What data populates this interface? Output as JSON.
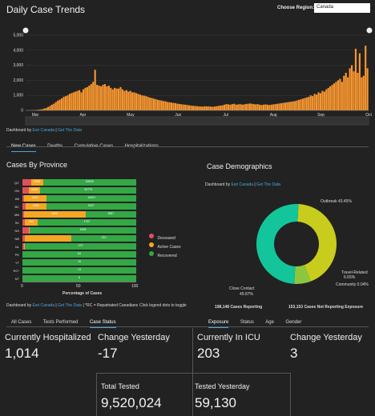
{
  "header": {
    "title": "Daily Case Trends",
    "region_label": "Choose Region:",
    "region_value": "Canada"
  },
  "trend": {
    "dashboard_by": "Dashboard by",
    "dashboard_link": "Esri Canada",
    "get_data": "Get The Data",
    "tabs": [
      "New Cases",
      "Deaths",
      "Cumulative Cases",
      "Hospitalizations"
    ],
    "active_tab": 0
  },
  "province": {
    "title": "Cases By Province",
    "xlabel": "Percentage of Cases",
    "legend": [
      "Deceased",
      "Active Cases",
      "Recovered"
    ],
    "footer_dashboard": "Dashboard by",
    "footer_link1": "Esri Canada",
    "footer_link2": "Get The Data",
    "footer_note": "*RC = Repatriated Canadians",
    "legend_hint": "Click legend dots to toggle",
    "tabs": [
      "All Cases",
      "Tests Performed",
      "Case Status"
    ],
    "active_tab": 2
  },
  "demographics": {
    "title": "Case Demographics",
    "dashboard_by": "Dashboard by",
    "dashboard_link": "Esri Canada",
    "get_data": "Get The Data",
    "labels": {
      "outbreak": "Outbreak 43.45%",
      "travel": "Travel-Related",
      "travel_pct": "6.65%",
      "community": "Community 0.04%",
      "close": "Close Contact",
      "close_pct": "49.87%"
    },
    "reporting": "198,148 Cases Reporting",
    "not_reporting": "153,153 Cases Not Reporting Exposure",
    "tabs": [
      "Exposure",
      "Status",
      "Age",
      "Gender"
    ],
    "active_tab": 0
  },
  "stats": {
    "hosp_label": "Currently Hospitalized",
    "hosp_value": "1,014",
    "hosp_change_label": "Change Yesterday",
    "hosp_change_value": "-17",
    "icu_label": "Currently In ICU",
    "icu_value": "203",
    "icu_change_label": "Change Yesterday",
    "icu_change_value": "3",
    "tested_label": "Total Tested",
    "tested_value": "9,520,024",
    "tested_y_label": "Tested Yesterday",
    "tested_y_value": "59,130"
  },
  "colors": {
    "deceased": "#e0505a",
    "active": "#f5a623",
    "recovered": "#33a845",
    "trend": "#f7962f",
    "outbreak": "#c8cc1c",
    "close": "#13c59a",
    "travel": "#8cc63f",
    "community": "#4caf50"
  },
  "chart_data": [
    {
      "type": "bar",
      "title": "Daily Case Trends",
      "x_ticks": [
        "Mar",
        "Apr",
        "May",
        "Jun",
        "Jul",
        "Aug",
        "Sep",
        "Oct"
      ],
      "y_ticks": [
        "0",
        "1,000",
        "2,000",
        "3,000",
        "4,000",
        "5,000"
      ],
      "ylim": [
        0,
        5000
      ],
      "values": [
        5,
        8,
        10,
        15,
        20,
        30,
        45,
        60,
        80,
        120,
        160,
        220,
        300,
        380,
        450,
        550,
        650,
        720,
        800,
        900,
        950,
        1000,
        1100,
        1150,
        1200,
        1250,
        1300,
        1350,
        1200,
        1400,
        1500,
        1550,
        1650,
        1750,
        1900,
        2700,
        1700,
        1650,
        1600,
        1700,
        1750,
        1600,
        1650,
        1500,
        1400,
        1500,
        1450,
        1450,
        1550,
        1400,
        1300,
        1350,
        1250,
        1300,
        1200,
        1200,
        1150,
        1100,
        1050,
        1000,
        980,
        950,
        900,
        850,
        820,
        780,
        750,
        700,
        680,
        650,
        620,
        600,
        560,
        540,
        520,
        500,
        480,
        450,
        430,
        410,
        390,
        380,
        360,
        340,
        320,
        300,
        300,
        280,
        270,
        260,
        250,
        280,
        260,
        270,
        250,
        240,
        260,
        280,
        300,
        320,
        340,
        380,
        420,
        400,
        380,
        420,
        440,
        380,
        400,
        420,
        380,
        400,
        420,
        440,
        460,
        440,
        420,
        400,
        420,
        380,
        360,
        380,
        400,
        380,
        360,
        380,
        400,
        420,
        440,
        460,
        480,
        500,
        520,
        540,
        560,
        580,
        600,
        620,
        660,
        700,
        740,
        780,
        820,
        860,
        900,
        1000,
        950,
        1100,
        1050,
        1200,
        1150,
        1300,
        1250,
        1400,
        1500,
        1600,
        1700,
        1800,
        1900,
        2000,
        2100,
        1900,
        2300,
        2500,
        2200,
        2800,
        3000,
        2600,
        4100,
        2500,
        3800,
        2200,
        2300,
        4300,
        2800
      ]
    },
    {
      "type": "bar",
      "title": "Cases By Province",
      "stacked": true,
      "orientation": "horizontal",
      "categories": [
        "QC",
        "ON",
        "AB",
        "BC",
        "MB",
        "SK",
        "NS",
        "NB",
        "NL",
        "PE",
        "YT",
        "RC*",
        "NT"
      ],
      "series": [
        {
          "name": "Deceased",
          "values": [
            7.4,
            5.7,
            1.1,
            2.6,
            1.2,
            2.0,
            5.6,
            1.8,
            1.4,
            0,
            0,
            0,
            0
          ]
        },
        {
          "name": "Active Cases",
          "values": [
            10.9,
            10.1,
            20.3,
            18.2,
            54.1,
            11.5,
            0.6,
            41.2,
            0.7,
            0,
            0,
            0,
            0
          ]
        },
        {
          "name": "Recovered",
          "values": [
            81.7,
            84.2,
            78.6,
            79.2,
            44.7,
            86.5,
            93.8,
            57.0,
            97.9,
            100,
            100,
            100,
            100
          ]
        }
      ],
      "data_labels": {
        "QC": [
          "",
          "9286",
          "69539"
        ],
        "ON": [
          "",
          "6408",
          "53775"
        ],
        "AB": [
          "",
          "4471",
          "18421"
        ],
        "BC": [
          "",
          "1990",
          "9327"
        ],
        "MB": [
          "",
          "1600",
          "1687"
        ],
        "SK": [
          "",
          "252",
          "1767"
        ],
        "NS": [
          "",
          "",
          "1005"
        ],
        "NB": [
          "",
          "",
          "210"
        ],
        "NL": [
          "",
          "",
          "272"
        ],
        "PE": [
          "",
          "",
          "64"
        ],
        "YT": [
          "",
          "",
          "15"
        ],
        "RC*": [
          "",
          "",
          "13"
        ],
        "NT": [
          "",
          "",
          "5"
        ]
      },
      "xlabel": "Percentage of Cases",
      "xlim": [
        0,
        100
      ],
      "x_ticks": [
        "0",
        "50",
        "100"
      ]
    },
    {
      "type": "pie",
      "title": "Case Demographics",
      "donut": true,
      "slices": [
        {
          "name": "Outbreak",
          "value": 43.45
        },
        {
          "name": "Travel-Related",
          "value": 6.65
        },
        {
          "name": "Community",
          "value": 0.04
        },
        {
          "name": "Close Contact",
          "value": 49.87
        }
      ]
    }
  ]
}
